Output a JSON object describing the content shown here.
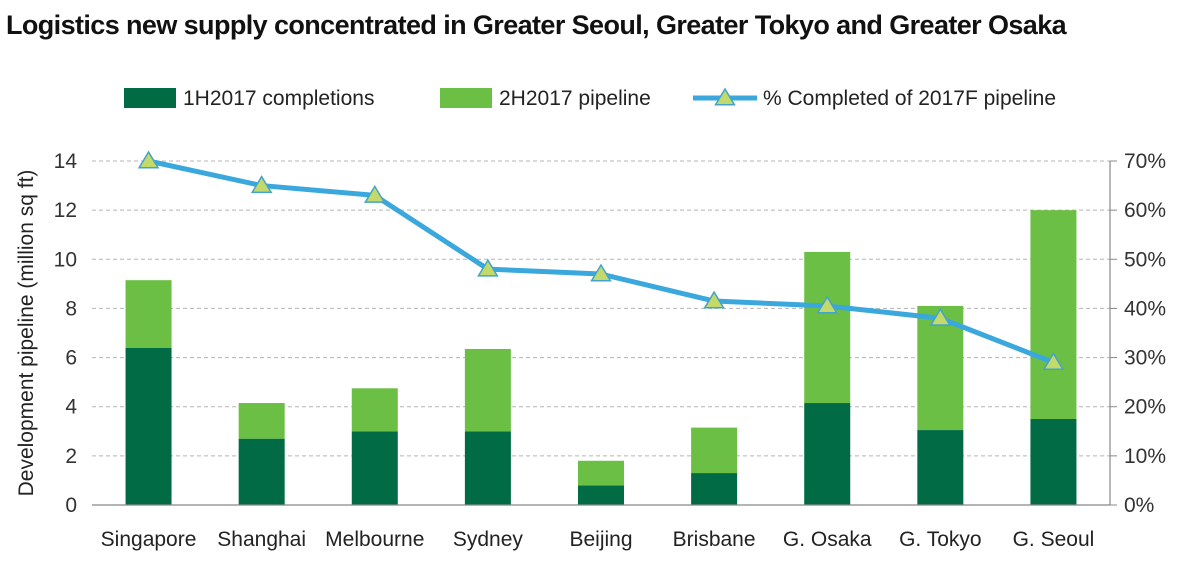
{
  "title": "Logistics new supply concentrated in Greater Seoul, Greater Tokyo and Greater Osaka",
  "chart_data": {
    "type": "bar",
    "stacked": true,
    "categories": [
      "Singapore",
      "Shanghai",
      "Melbourne",
      "Sydney",
      "Beijing",
      "Brisbane",
      "G. Osaka",
      "G. Tokyo",
      "G. Seoul"
    ],
    "series": [
      {
        "name": "1H2017 completions",
        "type": "bar",
        "axis": "left",
        "color": "#006b45",
        "values": [
          6.4,
          2.7,
          3.0,
          3.0,
          0.8,
          1.3,
          4.15,
          3.05,
          3.5
        ]
      },
      {
        "name": "2H2017 pipeline",
        "type": "bar",
        "axis": "left",
        "color": "#6cbf45",
        "values": [
          2.75,
          1.45,
          1.75,
          3.35,
          1.0,
          1.85,
          6.15,
          5.05,
          8.5
        ]
      },
      {
        "name": "% Completed of 2017F pipeline",
        "type": "line",
        "axis": "right",
        "color": "#3aa8dc",
        "marker_color": "#c3d96a",
        "values": [
          70,
          65,
          63,
          48,
          47,
          41.5,
          40.5,
          38,
          29
        ]
      }
    ],
    "ylabel": "Development pipeline (million sq ft)",
    "ylim": [
      0,
      14
    ],
    "yticks": [
      "0",
      "2",
      "4",
      "6",
      "8",
      "10",
      "12",
      "14"
    ],
    "y2lim": [
      0,
      70
    ],
    "y2ticks": [
      "0%",
      "10%",
      "20%",
      "30%",
      "40%",
      "50%",
      "60%",
      "70%"
    ],
    "grid": true,
    "legend": "top"
  }
}
